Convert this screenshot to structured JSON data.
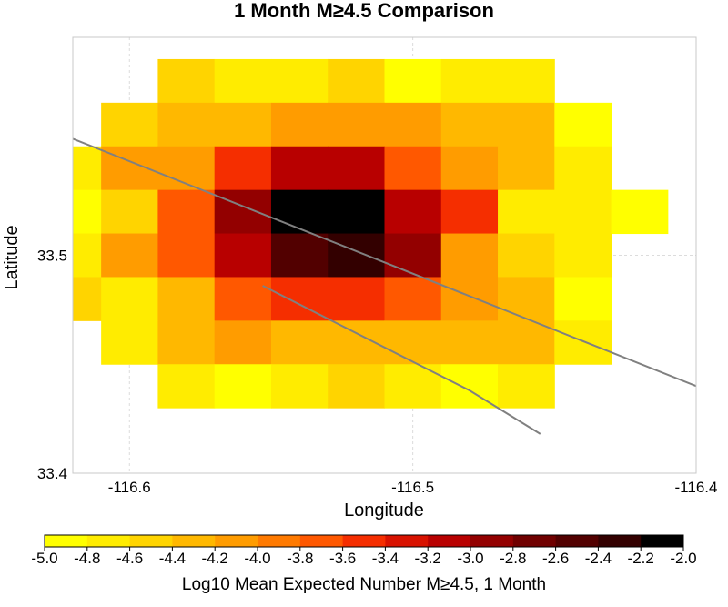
{
  "chart_data": {
    "type": "heatmap",
    "title": "1 Month M≥4.5 Comparison",
    "xlabel": "Longitude",
    "ylabel": "Latitude",
    "xlim": [
      -116.62,
      -116.4
    ],
    "ylim": [
      33.4,
      33.6
    ],
    "cell_size": 0.02,
    "x_ticks": [
      -116.6,
      -116.5,
      -116.4
    ],
    "x_tick_labels": [
      "-116.6",
      "-116.5",
      "-116.4"
    ],
    "y_ticks": [
      33.4,
      33.5
    ],
    "y_tick_labels": [
      "33.4",
      "33.5"
    ],
    "grid": true,
    "colorbar": {
      "label": "Log10 Mean Expected Number M≥4.5, 1 Month",
      "min": -5.0,
      "max": -2.0,
      "tick_labels": [
        "-5.0",
        "-4.8",
        "-4.6",
        "-4.4",
        "-4.2",
        "-4.0",
        "-3.8",
        "-3.6",
        "-3.4",
        "-3.2",
        "-3.0",
        "-2.8",
        "-2.6",
        "-2.4",
        "-2.2",
        "-2.0"
      ],
      "colors": [
        "#ffff00",
        "#ffec00",
        "#ffd400",
        "#ffb800",
        "#ff9c00",
        "#ff7a00",
        "#ff5800",
        "#f52e00",
        "#d81200",
        "#b80000",
        "#930000",
        "#700000",
        "#520000",
        "#330000",
        "#000000"
      ]
    },
    "cells": [
      {
        "lon": -116.58,
        "lat": 33.58,
        "v": -4.5
      },
      {
        "lon": -116.56,
        "lat": 33.58,
        "v": -4.7
      },
      {
        "lon": -116.54,
        "lat": 33.58,
        "v": -4.7
      },
      {
        "lon": -116.52,
        "lat": 33.58,
        "v": -4.5
      },
      {
        "lon": -116.5,
        "lat": 33.58,
        "v": -4.9
      },
      {
        "lon": -116.48,
        "lat": 33.58,
        "v": -4.7
      },
      {
        "lon": -116.46,
        "lat": 33.58,
        "v": -4.7
      },
      {
        "lon": -116.6,
        "lat": 33.56,
        "v": -4.5
      },
      {
        "lon": -116.58,
        "lat": 33.56,
        "v": -4.3
      },
      {
        "lon": -116.56,
        "lat": 33.56,
        "v": -4.3
      },
      {
        "lon": -116.54,
        "lat": 33.56,
        "v": -4.1
      },
      {
        "lon": -116.52,
        "lat": 33.56,
        "v": -4.1
      },
      {
        "lon": -116.5,
        "lat": 33.56,
        "v": -4.1
      },
      {
        "lon": -116.48,
        "lat": 33.56,
        "v": -4.3
      },
      {
        "lon": -116.46,
        "lat": 33.56,
        "v": -4.3
      },
      {
        "lon": -116.44,
        "lat": 33.56,
        "v": -4.9
      },
      {
        "lon": -116.62,
        "lat": 33.54,
        "v": -4.7
      },
      {
        "lon": -116.6,
        "lat": 33.54,
        "v": -4.1
      },
      {
        "lon": -116.58,
        "lat": 33.54,
        "v": -4.1
      },
      {
        "lon": -116.56,
        "lat": 33.54,
        "v": -3.5
      },
      {
        "lon": -116.54,
        "lat": 33.54,
        "v": -3.1
      },
      {
        "lon": -116.52,
        "lat": 33.54,
        "v": -3.1
      },
      {
        "lon": -116.5,
        "lat": 33.54,
        "v": -3.7
      },
      {
        "lon": -116.48,
        "lat": 33.54,
        "v": -4.1
      },
      {
        "lon": -116.46,
        "lat": 33.54,
        "v": -4.3
      },
      {
        "lon": -116.44,
        "lat": 33.54,
        "v": -4.7
      },
      {
        "lon": -116.62,
        "lat": 33.52,
        "v": -4.9
      },
      {
        "lon": -116.6,
        "lat": 33.52,
        "v": -4.5
      },
      {
        "lon": -116.58,
        "lat": 33.52,
        "v": -3.7
      },
      {
        "lon": -116.56,
        "lat": 33.52,
        "v": -2.9
      },
      {
        "lon": -116.54,
        "lat": 33.52,
        "v": -2.1
      },
      {
        "lon": -116.52,
        "lat": 33.52,
        "v": -2.1
      },
      {
        "lon": -116.5,
        "lat": 33.52,
        "v": -3.1
      },
      {
        "lon": -116.48,
        "lat": 33.52,
        "v": -3.5
      },
      {
        "lon": -116.46,
        "lat": 33.52,
        "v": -4.7
      },
      {
        "lon": -116.44,
        "lat": 33.52,
        "v": -4.7
      },
      {
        "lon": -116.42,
        "lat": 33.52,
        "v": -4.9
      },
      {
        "lon": -116.62,
        "lat": 33.5,
        "v": -4.7
      },
      {
        "lon": -116.6,
        "lat": 33.5,
        "v": -4.1
      },
      {
        "lon": -116.58,
        "lat": 33.5,
        "v": -3.7
      },
      {
        "lon": -116.56,
        "lat": 33.5,
        "v": -3.1
      },
      {
        "lon": -116.54,
        "lat": 33.5,
        "v": -2.5
      },
      {
        "lon": -116.52,
        "lat": 33.5,
        "v": -2.3
      },
      {
        "lon": -116.5,
        "lat": 33.5,
        "v": -2.9
      },
      {
        "lon": -116.48,
        "lat": 33.5,
        "v": -4.1
      },
      {
        "lon": -116.46,
        "lat": 33.5,
        "v": -4.5
      },
      {
        "lon": -116.44,
        "lat": 33.5,
        "v": -4.7
      },
      {
        "lon": -116.62,
        "lat": 33.48,
        "v": -4.5
      },
      {
        "lon": -116.6,
        "lat": 33.48,
        "v": -4.7
      },
      {
        "lon": -116.58,
        "lat": 33.48,
        "v": -4.3
      },
      {
        "lon": -116.56,
        "lat": 33.48,
        "v": -3.7
      },
      {
        "lon": -116.54,
        "lat": 33.48,
        "v": -3.5
      },
      {
        "lon": -116.52,
        "lat": 33.48,
        "v": -3.5
      },
      {
        "lon": -116.5,
        "lat": 33.48,
        "v": -3.7
      },
      {
        "lon": -116.48,
        "lat": 33.48,
        "v": -4.1
      },
      {
        "lon": -116.46,
        "lat": 33.48,
        "v": -4.3
      },
      {
        "lon": -116.44,
        "lat": 33.48,
        "v": -4.9
      },
      {
        "lon": -116.6,
        "lat": 33.46,
        "v": -4.7
      },
      {
        "lon": -116.58,
        "lat": 33.46,
        "v": -4.3
      },
      {
        "lon": -116.56,
        "lat": 33.46,
        "v": -4.1
      },
      {
        "lon": -116.54,
        "lat": 33.46,
        "v": -4.3
      },
      {
        "lon": -116.52,
        "lat": 33.46,
        "v": -4.3
      },
      {
        "lon": -116.5,
        "lat": 33.46,
        "v": -4.3
      },
      {
        "lon": -116.48,
        "lat": 33.46,
        "v": -4.3
      },
      {
        "lon": -116.46,
        "lat": 33.46,
        "v": -4.3
      },
      {
        "lon": -116.44,
        "lat": 33.46,
        "v": -4.7
      },
      {
        "lon": -116.58,
        "lat": 33.44,
        "v": -4.7
      },
      {
        "lon": -116.56,
        "lat": 33.44,
        "v": -4.9
      },
      {
        "lon": -116.54,
        "lat": 33.44,
        "v": -4.7
      },
      {
        "lon": -116.52,
        "lat": 33.44,
        "v": -4.5
      },
      {
        "lon": -116.5,
        "lat": 33.44,
        "v": -4.7
      },
      {
        "lon": -116.48,
        "lat": 33.44,
        "v": -4.9
      },
      {
        "lon": -116.46,
        "lat": 33.44,
        "v": -4.7
      }
    ],
    "fault_traces": [
      [
        [
          -116.621,
          33.554
        ],
        [
          -116.4,
          33.44
        ]
      ],
      [
        [
          -116.553,
          33.486
        ],
        [
          -116.48,
          33.438
        ],
        [
          -116.455,
          33.418
        ]
      ]
    ]
  }
}
